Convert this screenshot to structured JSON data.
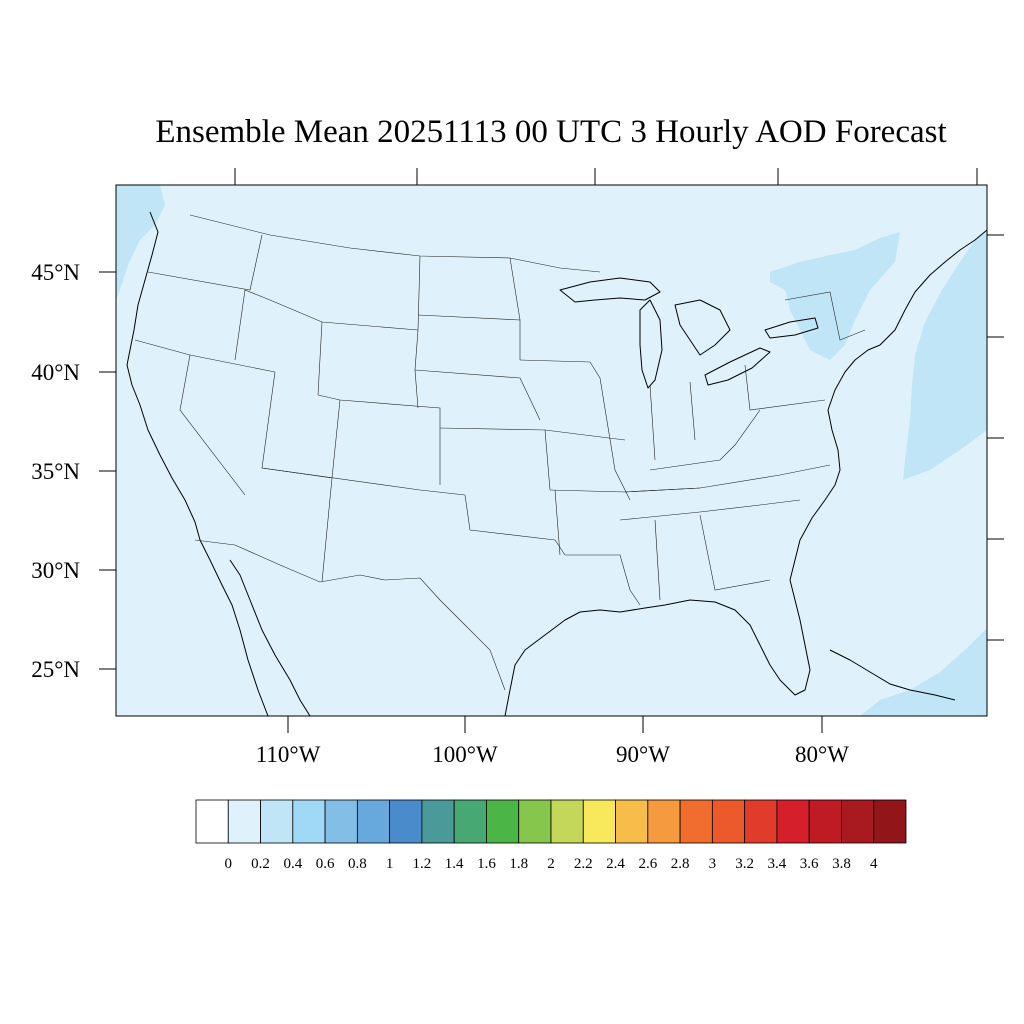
{
  "title": "Ensemble Mean 20251113 00 UTC 3 Hourly AOD Forecast",
  "map": {
    "projection": "lambert-conformal",
    "region": "contiguous-united-states",
    "background_color": "#dff2fb",
    "lon_labels": [
      "110°W",
      "100°W",
      "90°W",
      "80°W"
    ],
    "lat_labels": [
      "45°N",
      "40°N",
      "35°N",
      "30°N",
      "25°N"
    ],
    "higher_aod_regions": [
      {
        "name": "atlantic-offshore",
        "color": "#bfe5f7"
      },
      {
        "name": "pacific-northwest-coast",
        "color": "#bfe5f7"
      },
      {
        "name": "ontario-quebec-new-york",
        "color": "#bfe5f7"
      },
      {
        "name": "caribbean-bahamas",
        "color": "#bfe5f7"
      }
    ]
  },
  "colorbar": {
    "labels": [
      "0",
      "0.2",
      "0.4",
      "0.6",
      "0.8",
      "1",
      "1.2",
      "1.4",
      "1.6",
      "1.8",
      "2",
      "2.2",
      "2.4",
      "2.6",
      "2.8",
      "3",
      "3.2",
      "3.4",
      "3.6",
      "3.8",
      "4"
    ],
    "colors": [
      "#ffffff",
      "#dff2fb",
      "#bfe5f7",
      "#a0d9f5",
      "#82bee6",
      "#67a9dc",
      "#4a8bcb",
      "#4a9a9a",
      "#48a873",
      "#4bb545",
      "#86c64d",
      "#c5d758",
      "#f7e85c",
      "#f6bd4a",
      "#f59a3e",
      "#f16d2e",
      "#ec5a2c",
      "#e13b2b",
      "#d51f2a",
      "#bf1b25",
      "#a91920",
      "#921519"
    ]
  }
}
